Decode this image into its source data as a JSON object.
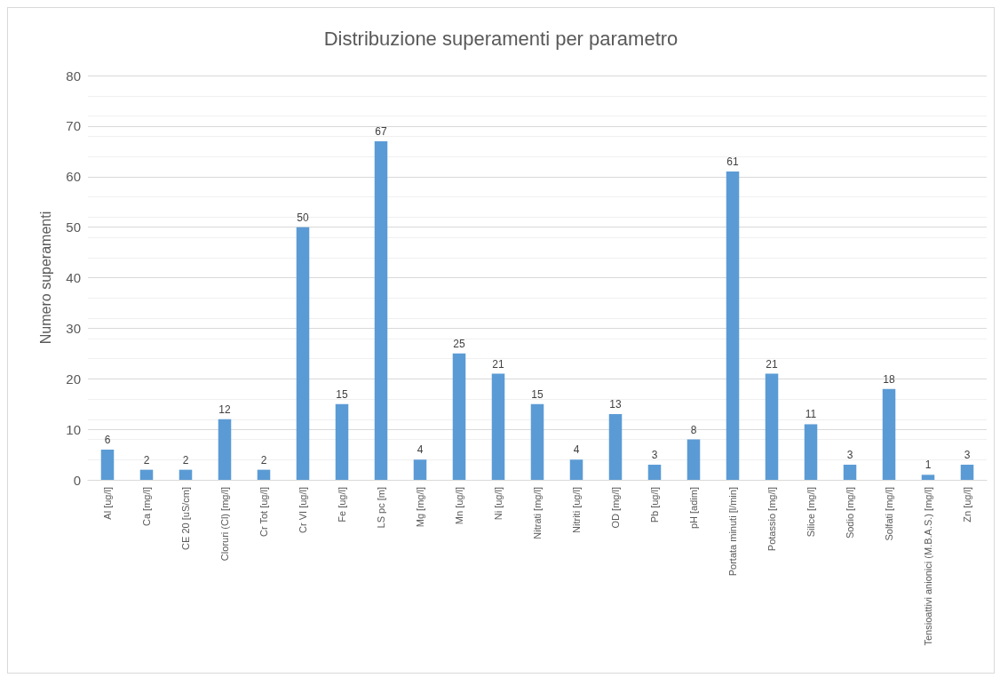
{
  "chart_data": {
    "type": "bar",
    "title": "Distribuzione superamenti per parametro",
    "ylabel": "Numero superamenti",
    "categories": [
      "Al [ug/l]",
      "Ca [mg/l]",
      "CE 20 [uS/cm]",
      "Cloruri (Cl) [mg/l]",
      "Cr Tot [ug/l]",
      "Cr VI [ug/l]",
      "Fe [ug/l]",
      "LS pc [m]",
      "Mg [mg/l]",
      "Mn [ug/l]",
      "Ni [ug/l]",
      "Nitrati [mg/l]",
      "Nitriti [ug/l]",
      "OD [mg/l]",
      "Pb [ug/l]",
      "pH [adim]",
      "Portata minuti [l/min]",
      "Potassio [mg/l]",
      "Silice [mg/l]",
      "Sodio [mg/l]",
      "Solfati [mg/l]",
      "Tensioattivi anionici (M.B.A.S.) [mg/l]",
      "Zn [ug/l]"
    ],
    "values": [
      6,
      2,
      2,
      12,
      2,
      50,
      15,
      67,
      4,
      25,
      21,
      15,
      4,
      13,
      3,
      8,
      61,
      21,
      11,
      3,
      18,
      1,
      3
    ],
    "color": "#5b9bd5",
    "ylim": [
      0,
      80
    ],
    "yticks": [
      0,
      10,
      20,
      30,
      40,
      50,
      60,
      70,
      80
    ],
    "grid": "y",
    "data_labels": true
  }
}
